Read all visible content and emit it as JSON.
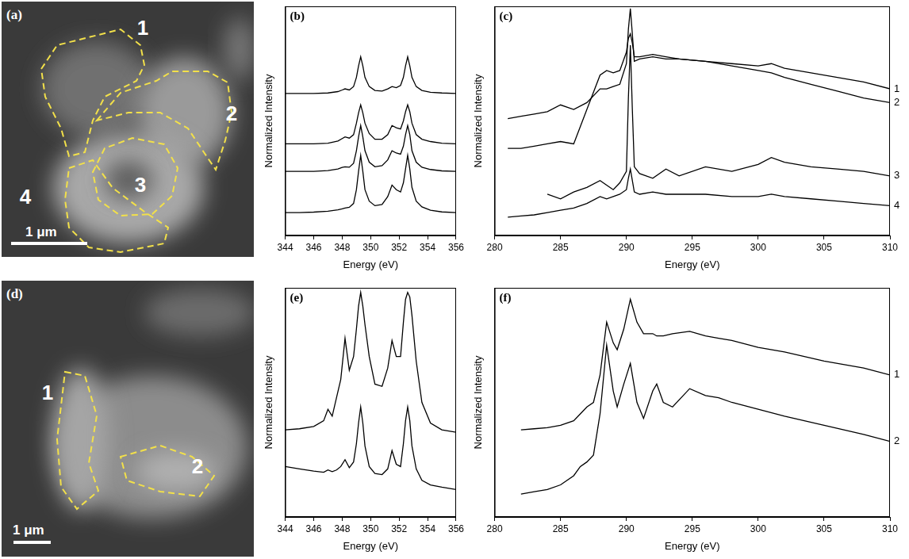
{
  "chart_data": [
    {
      "type": "line",
      "title": "(b)",
      "x_label": "Energy (eV)",
      "y_label": "Normalized Intensity",
      "x": [
        344,
        345,
        346,
        347,
        347.7,
        348,
        348.2,
        348.5,
        348.8,
        349,
        349.15,
        349.3,
        349.45,
        349.6,
        349.9,
        350.3,
        350.8,
        351.2,
        351.5,
        351.8,
        352.1,
        352.3,
        352.45,
        352.6,
        352.75,
        352.9,
        353.2,
        353.6,
        354.2,
        355,
        356
      ],
      "series": [
        {
          "values": [
            62,
            62,
            62,
            62.2,
            62.8,
            63.5,
            64,
            63.5,
            65,
            69,
            74,
            78,
            74,
            69,
            65,
            63.3,
            63,
            64,
            65,
            64.5,
            65.5,
            69,
            74,
            78,
            74,
            69,
            65,
            63.3,
            62.5,
            62.2,
            62
          ]
        },
        {
          "values": [
            40,
            40,
            40,
            40.3,
            41.2,
            42.3,
            43,
            42.5,
            44,
            49,
            53.5,
            57,
            53.5,
            49,
            44.5,
            42,
            42,
            44,
            48,
            47,
            46.5,
            50,
            54,
            57,
            54,
            49,
            44,
            42,
            41,
            40.3,
            40
          ]
        },
        {
          "values": [
            28,
            28,
            28,
            28.3,
            29,
            29.7,
            30,
            29.8,
            31.5,
            37,
            43,
            48,
            43,
            37,
            32,
            30,
            30.5,
            33,
            37,
            36,
            35.5,
            39,
            44,
            48,
            44,
            37,
            32,
            29.8,
            28.8,
            28.2,
            28
          ]
        },
        {
          "values": [
            10,
            10,
            10.2,
            10.6,
            11.2,
            11.6,
            12,
            12.3,
            14,
            20,
            28,
            35,
            28,
            20,
            15,
            13,
            13.5,
            17,
            22,
            20,
            19,
            23,
            29,
            35,
            29,
            21,
            15,
            12.5,
            11,
            10.3,
            10
          ]
        }
      ],
      "xlim": [
        344,
        356
      ],
      "xticks": [
        344,
        346,
        348,
        350,
        352,
        354,
        356
      ],
      "ylim": [
        0,
        100
      ],
      "tick_labels": "x",
      "grid": false,
      "color": "#000000"
    },
    {
      "type": "line",
      "title": "(c)",
      "x_label": "Energy (eV)",
      "y_label": "Normalized Intensity",
      "x": [
        281,
        282,
        283,
        284,
        285,
        286,
        287,
        288,
        288.5,
        289,
        289.5,
        290,
        290.15,
        290.3,
        290.45,
        290.6,
        291,
        292,
        293,
        294,
        296,
        298,
        300,
        301,
        302,
        304,
        306,
        308,
        310
      ],
      "series": [
        {
          "name": "1",
          "values": [
            51,
            52,
            53,
            54,
            57,
            55,
            58,
            64,
            64,
            65,
            66,
            75,
            90,
            99,
            88,
            76,
            77,
            78,
            77,
            77,
            76,
            75,
            74,
            75,
            73,
            71,
            69,
            67,
            64
          ]
        },
        {
          "name": "2",
          "values": [
            38,
            38,
            39,
            40,
            41,
            40,
            55,
            70,
            72,
            71,
            72,
            80,
            86,
            88,
            84,
            78,
            78,
            79,
            78,
            77,
            76,
            74,
            72,
            71,
            69,
            66,
            63,
            60,
            58
          ]
        },
        {
          "name": "3",
          "values": [
            null,
            null,
            null,
            18,
            16,
            19,
            21,
            24,
            22,
            20,
            23,
            28,
            60,
            83,
            55,
            30,
            27,
            25,
            29,
            26,
            30,
            28,
            31,
            34,
            32,
            30,
            29,
            28,
            26
          ]
        },
        {
          "name": "4",
          "values": [
            8,
            8.5,
            9,
            10,
            11,
            12,
            14,
            17,
            16,
            17,
            18,
            20,
            25,
            29,
            24,
            19,
            18,
            19,
            18,
            18,
            18,
            17,
            17,
            18,
            17,
            16,
            15,
            14,
            13
          ]
        }
      ],
      "xlim": [
        280,
        310
      ],
      "xticks": [
        280,
        285,
        290,
        295,
        300,
        305,
        310
      ],
      "ylim": [
        0,
        100
      ],
      "tick_labels": "x",
      "grid": false,
      "color": "#000000"
    },
    {
      "type": "line",
      "title": "(e)",
      "x_label": "Energy (eV)",
      "y_label": "Normalized Intensity",
      "x": [
        344,
        345,
        346,
        346.7,
        347,
        347.3,
        347.6,
        347.9,
        348.2,
        348.5,
        348.8,
        349,
        349.15,
        349.3,
        349.45,
        349.6,
        349.9,
        350.3,
        350.8,
        351.2,
        351.5,
        351.8,
        352.1,
        352.3,
        352.45,
        352.6,
        352.75,
        352.9,
        353.2,
        353.6,
        354.2,
        355,
        356
      ],
      "series": [
        {
          "values": [
            38,
            38.5,
            39.5,
            42,
            47,
            44,
            52,
            60,
            78,
            64,
            70,
            82,
            92,
            98,
            92,
            84,
            70,
            58,
            57,
            65,
            77,
            70,
            70,
            85,
            95,
            98,
            96,
            88,
            68,
            50,
            41,
            38,
            37
          ]
        },
        {
          "values": [
            22,
            21,
            20,
            19.5,
            20.5,
            19.8,
            20.5,
            22,
            25,
            21.5,
            24,
            32,
            41,
            48,
            41,
            31,
            22,
            19,
            18.5,
            21,
            29,
            23,
            22,
            32,
            42,
            48,
            42,
            31,
            21,
            16,
            14,
            13,
            12
          ]
        }
      ],
      "xlim": [
        344,
        356
      ],
      "xticks": [
        344,
        346,
        348,
        350,
        352,
        354,
        356
      ],
      "ylim": [
        0,
        100
      ],
      "tick_labels": "x",
      "grid": false,
      "color": "#000000"
    },
    {
      "type": "line",
      "title": "(f)",
      "x_label": "Energy (eV)",
      "y_label": "Normalized Intensity",
      "x": [
        282,
        283,
        284,
        285,
        286,
        286.5,
        287,
        287.5,
        288,
        288.5,
        289,
        289.3,
        289.8,
        290.3,
        290.8,
        291.3,
        292,
        292.3,
        292.8,
        293.5,
        294.8,
        296,
        297,
        298,
        300,
        302,
        305,
        308,
        310
      ],
      "series": [
        {
          "name": "1",
          "values": [
            38,
            38.5,
            39,
            40,
            42,
            45,
            48,
            50,
            62,
            85,
            76,
            73,
            82,
            95,
            85,
            80,
            80,
            79,
            79,
            80,
            81,
            79,
            78,
            77,
            74,
            72,
            68,
            65,
            62
          ]
        },
        {
          "name": "2",
          "values": [
            10,
            11,
            12,
            14,
            18,
            22,
            24,
            27,
            45,
            75,
            55,
            48,
            58,
            67,
            50,
            43,
            55,
            58,
            50,
            48,
            56,
            53,
            52,
            50,
            47,
            44,
            40,
            36,
            33
          ]
        }
      ],
      "xlim": [
        280,
        310
      ],
      "xticks": [
        280,
        285,
        290,
        295,
        300,
        305,
        310
      ],
      "ylim": [
        0,
        100
      ],
      "tick_labels": "x",
      "grid": false,
      "color": "#000000"
    }
  ],
  "images": [
    {
      "label": "(a)",
      "regions": [
        "1",
        "2",
        "3",
        "4"
      ],
      "scale_bar": "1 μm"
    },
    {
      "label": "(d)",
      "regions": [
        "1",
        "2"
      ],
      "scale_bar": "1 μm"
    }
  ]
}
